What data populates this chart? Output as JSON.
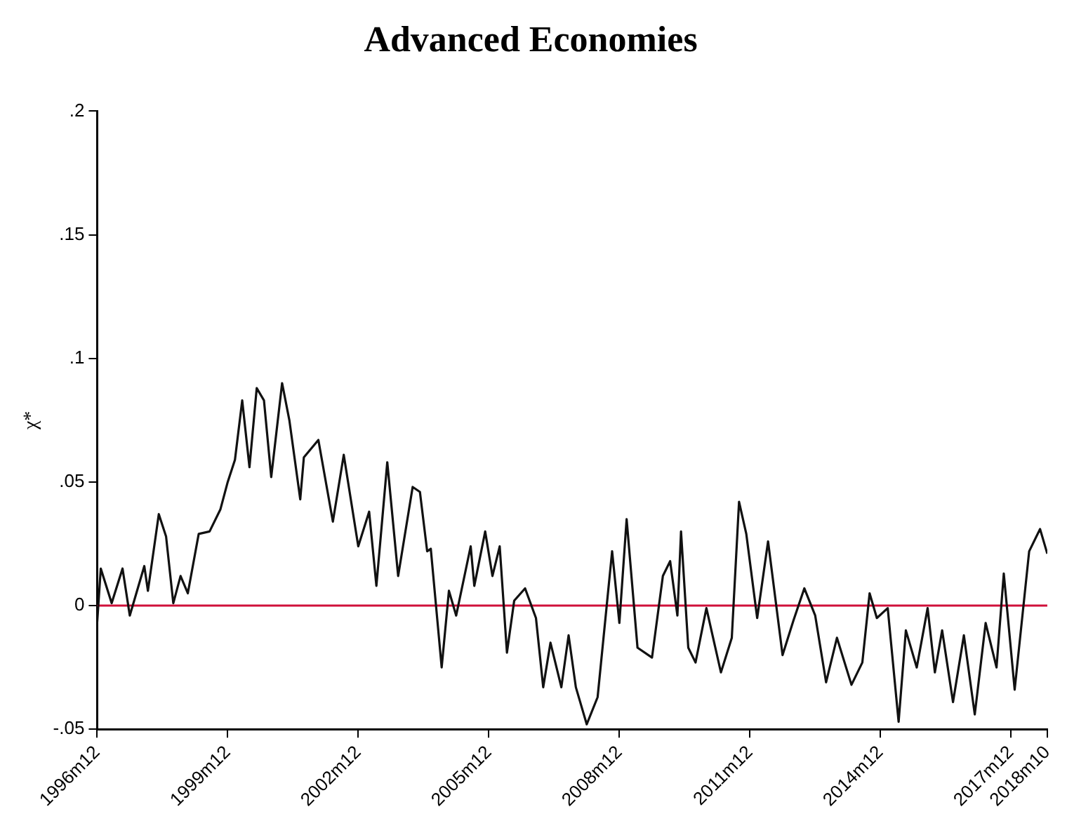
{
  "chart_data": {
    "type": "line",
    "title": "Advanced Economies",
    "ylabel": "χ*",
    "x": [
      "1996-12",
      "1997-01",
      "1997-04",
      "1997-07",
      "1997-09",
      "1998-01",
      "1998-02",
      "1998-05",
      "1998-07",
      "1998-09",
      "1998-11",
      "1999-01",
      "1999-04",
      "1999-07",
      "1999-10",
      "1999-12",
      "2000-02",
      "2000-04",
      "2000-06",
      "2000-08",
      "2000-10",
      "2000-12",
      "2001-03",
      "2001-05",
      "2001-08",
      "2001-09",
      "2002-01",
      "2002-05",
      "2002-08",
      "2002-12",
      "2003-03",
      "2003-05",
      "2003-08",
      "2003-11",
      "2004-03",
      "2004-05",
      "2004-07",
      "2004-08",
      "2004-11",
      "2005-01",
      "2005-03",
      "2005-07",
      "2005-08",
      "2005-11",
      "2006-01",
      "2006-03",
      "2006-05",
      "2006-07",
      "2006-10",
      "2007-01",
      "2007-03",
      "2007-05",
      "2007-08",
      "2007-10",
      "2007-12",
      "2008-03",
      "2008-06",
      "2008-10",
      "2008-12",
      "2009-02",
      "2009-05",
      "2009-09",
      "2009-12",
      "2010-02",
      "2010-04",
      "2010-05",
      "2010-07",
      "2010-09",
      "2010-12",
      "2011-04",
      "2011-07",
      "2011-09",
      "2011-11",
      "2012-02",
      "2012-05",
      "2012-09",
      "2012-12",
      "2013-03",
      "2013-06",
      "2013-09",
      "2013-12",
      "2014-04",
      "2014-07",
      "2014-09",
      "2014-11",
      "2015-02",
      "2015-05",
      "2015-07",
      "2015-10",
      "2016-01",
      "2016-03",
      "2016-05",
      "2016-08",
      "2016-11",
      "2017-02",
      "2017-05",
      "2017-08",
      "2017-10",
      "2018-01",
      "2018-05",
      "2018-08",
      "2018-10"
    ],
    "series": [
      {
        "color": "#111111",
        "values": [
          -0.007,
          0.015,
          0.001,
          0.015,
          -0.004,
          0.016,
          0.006,
          0.037,
          0.028,
          0.001,
          0.012,
          0.005,
          0.029,
          0.03,
          0.039,
          0.05,
          0.059,
          0.083,
          0.056,
          0.088,
          0.083,
          0.052,
          0.09,
          0.075,
          0.043,
          0.06,
          0.067,
          0.034,
          0.061,
          0.024,
          0.038,
          0.008,
          0.058,
          0.012,
          0.048,
          0.046,
          0.022,
          0.023,
          -0.025,
          0.006,
          -0.004,
          0.024,
          0.008,
          0.03,
          0.012,
          0.024,
          -0.019,
          0.002,
          0.007,
          -0.005,
          -0.033,
          -0.015,
          -0.033,
          -0.012,
          -0.033,
          -0.048,
          -0.037,
          0.022,
          -0.007,
          0.035,
          -0.017,
          -0.021,
          0.012,
          0.018,
          -0.004,
          0.03,
          -0.017,
          -0.023,
          -0.001,
          -0.027,
          -0.013,
          0.042,
          0.029,
          -0.005,
          0.026,
          -0.02,
          -0.006,
          0.007,
          -0.004,
          -0.031,
          -0.013,
          -0.032,
          -0.023,
          0.005,
          -0.005,
          -0.001,
          -0.047,
          -0.01,
          -0.025,
          -0.001,
          -0.027,
          -0.01,
          -0.039,
          -0.012,
          -0.044,
          -0.007,
          -0.025,
          0.013,
          -0.034,
          0.022,
          0.031,
          0.021
        ]
      }
    ],
    "xlim": [
      "1996-12",
      "2018-10"
    ],
    "xticks": [
      {
        "value": "1996-12",
        "label": "1996m12"
      },
      {
        "value": "1999-12",
        "label": "1999m12"
      },
      {
        "value": "2002-12",
        "label": "2002m12"
      },
      {
        "value": "2005-12",
        "label": "2005m12"
      },
      {
        "value": "2008-12",
        "label": "2008m12"
      },
      {
        "value": "2011-12",
        "label": "2011m12"
      },
      {
        "value": "2014-12",
        "label": "2014m12"
      },
      {
        "value": "2017-12",
        "label": "2017m12"
      },
      {
        "value": "2018-10",
        "label": "2018m10"
      }
    ],
    "ylim": [
      -0.05,
      0.2
    ],
    "yticks": [
      {
        "value": -0.05,
        "label": "-.05"
      },
      {
        "value": 0,
        "label": "0"
      },
      {
        "value": 0.05,
        "label": ".05"
      },
      {
        "value": 0.1,
        "label": ".1"
      },
      {
        "value": 0.15,
        "label": ".15"
      },
      {
        "value": 0.2,
        "label": ".2"
      }
    ],
    "ref_lines": [
      {
        "axis": "y",
        "value": 0,
        "color": "#d0103a"
      }
    ],
    "grid": false,
    "legend": false,
    "marker": "none",
    "line_style": "solid"
  }
}
